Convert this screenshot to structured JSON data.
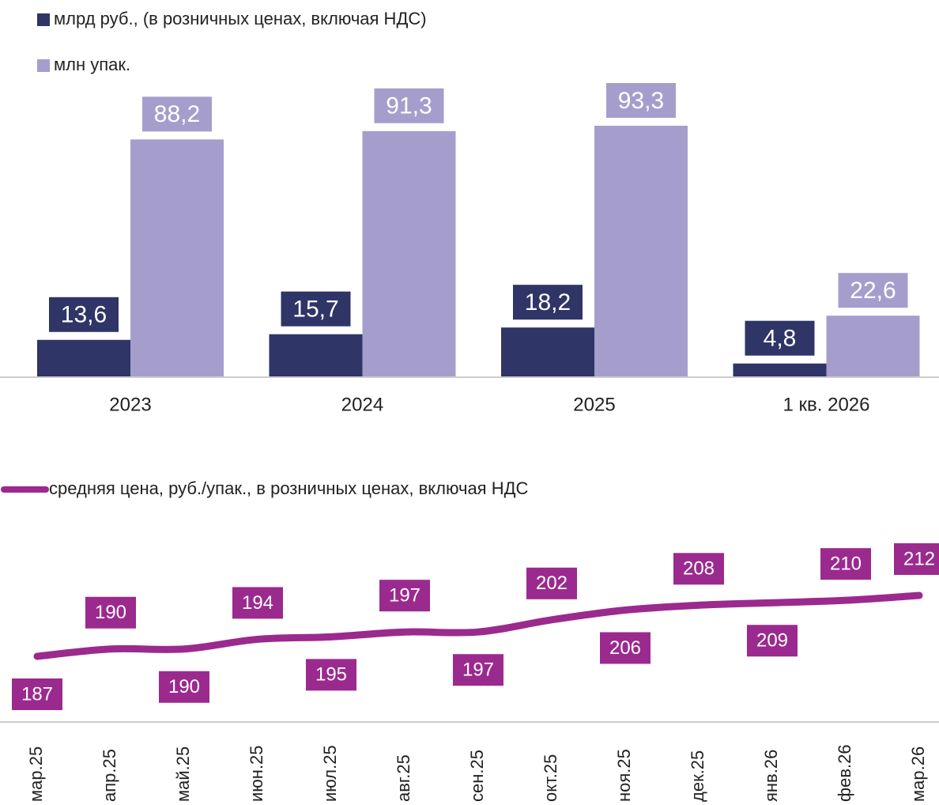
{
  "chart_data": [
    {
      "type": "bar",
      "categories": [
        "2023",
        "2024",
        "2025",
        "1 кв. 2026"
      ],
      "series": [
        {
          "name": "млрд руб., (в розничных ценах, включая НДС)",
          "color": "#2f3566",
          "values": [
            13.6,
            15.7,
            18.2,
            4.8
          ],
          "value_labels": [
            "13,6",
            "15,7",
            "18,2",
            "4,8"
          ]
        },
        {
          "name": "млн упак.",
          "color": "#a59ecd",
          "values": [
            88.2,
            91.3,
            93.3,
            22.6
          ],
          "value_labels": [
            "88,2",
            "91,3",
            "93,3",
            "22,6"
          ]
        }
      ]
    },
    {
      "type": "line",
      "categories": [
        "мар.25",
        "апр.25",
        "май.25",
        "июн.25",
        "июл.25",
        "авг.25",
        "сен.25",
        "окт.25",
        "ноя.25",
        "дек.25",
        "янв.26",
        "фев.26",
        "мар.26"
      ],
      "series": [
        {
          "name": "средняя цена, руб./упак., в розничных ценах, включая НДС",
          "color": "#9b2a8e",
          "values": [
            187,
            190,
            190,
            194,
            195,
            197,
            197,
            202,
            206,
            208,
            209,
            210,
            212
          ]
        }
      ]
    }
  ]
}
